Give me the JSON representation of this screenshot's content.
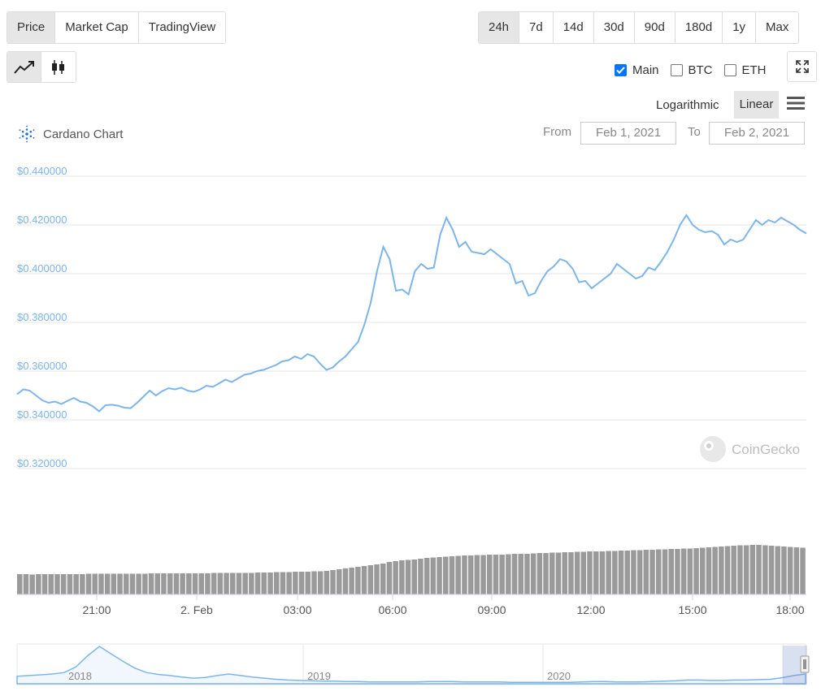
{
  "type_tabs": [
    {
      "label": "Price",
      "active": true
    },
    {
      "label": "Market Cap",
      "active": false
    },
    {
      "label": "TradingView",
      "active": false
    }
  ],
  "range_tabs": [
    {
      "label": "24h",
      "active": true
    },
    {
      "label": "7d",
      "active": false
    },
    {
      "label": "14d",
      "active": false
    },
    {
      "label": "30d",
      "active": false
    },
    {
      "label": "90d",
      "active": false
    },
    {
      "label": "180d",
      "active": false
    },
    {
      "label": "1y",
      "active": false
    },
    {
      "label": "Max",
      "active": false
    }
  ],
  "chart_style": {
    "line_icon": "line-chart-icon",
    "candle_icon": "candlestick-icon",
    "selected": "line"
  },
  "compare": [
    {
      "label": "Main",
      "checked": true
    },
    {
      "label": "BTC",
      "checked": false
    },
    {
      "label": "ETH",
      "checked": false
    }
  ],
  "scale": {
    "log_label": "Logarithmic",
    "linear_label": "Linear",
    "selected": "Linear"
  },
  "title": "Cardano Chart",
  "date_range": {
    "from_label": "From",
    "from_value": "Feb 1, 2021",
    "to_label": "To",
    "to_value": "Feb 2, 2021"
  },
  "watermark": "CoinGecko",
  "colors": {
    "line": "#7cb5ec",
    "volume": "#999999",
    "axis_text": "#7cb5ec",
    "grid": "#e6e6e6",
    "active_tab": "#e6e6e6"
  },
  "chart_data": {
    "type": "line",
    "ylim": [
      0.32,
      0.44
    ],
    "yticks": [
      "$0.440000",
      "$0.420000",
      "$0.400000",
      "$0.380000",
      "$0.360000",
      "$0.340000",
      "$0.320000"
    ],
    "xticks": [
      "21:00",
      "2. Feb",
      "03:00",
      "06:00",
      "09:00",
      "12:00",
      "15:00",
      "18:00"
    ],
    "price": [
      0.3505,
      0.3525,
      0.352,
      0.35,
      0.348,
      0.347,
      0.3475,
      0.3465,
      0.3478,
      0.349,
      0.3475,
      0.347,
      0.3455,
      0.3435,
      0.346,
      0.3462,
      0.3458,
      0.345,
      0.3448,
      0.347,
      0.3495,
      0.352,
      0.35,
      0.3518,
      0.353,
      0.3525,
      0.3532,
      0.352,
      0.3515,
      0.3525,
      0.354,
      0.3535,
      0.355,
      0.3565,
      0.3555,
      0.357,
      0.3585,
      0.359,
      0.36,
      0.3605,
      0.3615,
      0.3625,
      0.364,
      0.3645,
      0.366,
      0.365,
      0.367,
      0.366,
      0.363,
      0.3605,
      0.3615,
      0.364,
      0.366,
      0.369,
      0.372,
      0.379,
      0.388,
      0.401,
      0.411,
      0.406,
      0.393,
      0.3935,
      0.3915,
      0.401,
      0.404,
      0.402,
      0.4025,
      0.416,
      0.423,
      0.418,
      0.411,
      0.413,
      0.409,
      0.4085,
      0.408,
      0.41,
      0.408,
      0.406,
      0.404,
      0.396,
      0.397,
      0.391,
      0.392,
      0.397,
      0.401,
      0.403,
      0.406,
      0.405,
      0.402,
      0.3965,
      0.397,
      0.394,
      0.396,
      0.398,
      0.4,
      0.404,
      0.402,
      0.4,
      0.398,
      0.399,
      0.4025,
      0.4015,
      0.405,
      0.409,
      0.414,
      0.42,
      0.424,
      0.42,
      0.418,
      0.417,
      0.4175,
      0.416,
      0.412,
      0.414,
      0.413,
      0.414,
      0.418,
      0.422,
      0.42,
      0.422,
      0.421,
      0.423,
      0.4215,
      0.42,
      0.418,
      0.4165
    ],
    "volume_rel": [
      0.5,
      0.5,
      0.49,
      0.5,
      0.5,
      0.5,
      0.5,
      0.5,
      0.5,
      0.5,
      0.5,
      0.51,
      0.51,
      0.51,
      0.51,
      0.51,
      0.51,
      0.51,
      0.51,
      0.51,
      0.51,
      0.52,
      0.52,
      0.52,
      0.52,
      0.52,
      0.52,
      0.52,
      0.52,
      0.52,
      0.52,
      0.53,
      0.53,
      0.53,
      0.53,
      0.53,
      0.53,
      0.53,
      0.54,
      0.54,
      0.54,
      0.55,
      0.55,
      0.55,
      0.56,
      0.56,
      0.56,
      0.57,
      0.57,
      0.58,
      0.6,
      0.62,
      0.64,
      0.66,
      0.68,
      0.7,
      0.72,
      0.74,
      0.76,
      0.8,
      0.82,
      0.84,
      0.85,
      0.86,
      0.88,
      0.9,
      0.91,
      0.92,
      0.93,
      0.94,
      0.95,
      0.96,
      0.96,
      0.97,
      0.97,
      0.98,
      0.98,
      0.98,
      0.99,
      1.0,
      1.0,
      1.0,
      1.01,
      1.02,
      1.02,
      1.03,
      1.03,
      1.04,
      1.04,
      1.05,
      1.05,
      1.06,
      1.06,
      1.06,
      1.07,
      1.07,
      1.08,
      1.08,
      1.09,
      1.09,
      1.1,
      1.1,
      1.11,
      1.11,
      1.12,
      1.12,
      1.13,
      1.13,
      1.14,
      1.15,
      1.16,
      1.17,
      1.18,
      1.19,
      1.2,
      1.21,
      1.21,
      1.22,
      1.22,
      1.21,
      1.2,
      1.19,
      1.18,
      1.17,
      1.16,
      1.15
    ]
  },
  "navigator": {
    "labels": [
      "2018",
      "2019",
      "2020"
    ],
    "series": [
      0.2,
      0.22,
      0.24,
      0.26,
      0.3,
      0.45,
      0.75,
      1.0,
      0.8,
      0.6,
      0.42,
      0.3,
      0.25,
      0.22,
      0.18,
      0.15,
      0.17,
      0.22,
      0.26,
      0.22,
      0.18,
      0.15,
      0.12,
      0.1,
      0.09,
      0.08,
      0.07,
      0.07,
      0.06,
      0.06,
      0.05,
      0.05,
      0.05,
      0.05,
      0.05,
      0.06,
      0.06,
      0.06,
      0.05,
      0.05,
      0.05,
      0.05,
      0.04,
      0.04,
      0.04,
      0.04,
      0.04,
      0.04,
      0.05,
      0.06,
      0.06,
      0.05,
      0.05,
      0.05,
      0.06,
      0.07,
      0.08,
      0.1,
      0.1,
      0.09,
      0.09,
      0.1,
      0.1,
      0.11,
      0.12,
      0.16,
      0.22,
      0.26
    ]
  }
}
